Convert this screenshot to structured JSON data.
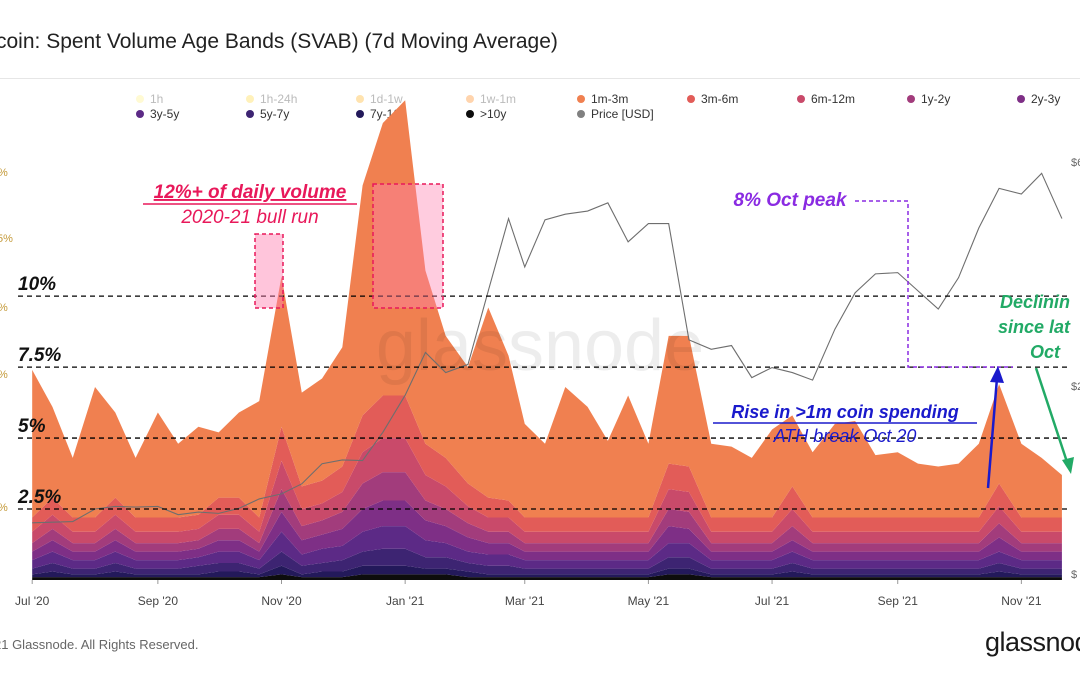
{
  "title": "coin: Spent Volume Age Bands (SVAB) (7d Moving Average)",
  "footer": "21 Glassnode. All Rights Reserved.",
  "logo": "glassnod",
  "watermark": "glassnode",
  "legend": [
    {
      "label": "1h",
      "color": "#fff59d",
      "faded": true
    },
    {
      "label": "1h-24h",
      "color": "#ffe066",
      "faded": true
    },
    {
      "label": "1d-1w",
      "color": "#ffc04d",
      "faded": true
    },
    {
      "label": "1w-1m",
      "color": "#ff9f4a",
      "faded": true
    },
    {
      "label": "1m-3m",
      "color": "#f08050",
      "faded": false
    },
    {
      "label": "3m-6m",
      "color": "#e25c58",
      "faded": false
    },
    {
      "label": "6m-12m",
      "color": "#c94a6a",
      "faded": false
    },
    {
      "label": "1y-2y",
      "color": "#a23c7c",
      "faded": false
    },
    {
      "label": "2y-3y",
      "color": "#7e2f86",
      "faded": false
    },
    {
      "label": "3y-5y",
      "color": "#5c2a86",
      "faded": false
    },
    {
      "label": "5y-7y",
      "color": "#3d2472",
      "faded": false
    },
    {
      "label": "7y-10y",
      "color": "#23195a",
      "faded": false
    },
    {
      "label": ">10y",
      "color": "#0d0d0d",
      "faded": false
    },
    {
      "label": "Price [USD]",
      "color": "#808080",
      "faded": false
    }
  ],
  "left_axis_fragments": [
    "%",
    "5%",
    "%",
    "%",
    "%"
  ],
  "right_axis_fragments": [
    "$6",
    "$2",
    "$"
  ],
  "annotations": {
    "bull_run_title": "12%+ of daily volume",
    "bull_run_sub": "2020-21 bull run",
    "oct_peak": "8% Oct peak",
    "rise_title": "Rise in >1m coin spending",
    "rise_sub": "ATH break Oct 20",
    "declining_1": "Declinin",
    "declining_2": "since lat",
    "declining_3": "Oct"
  },
  "colors": {
    "bull_run": "#e8185a",
    "oct_peak": "#8a2be2",
    "rise": "#1a1acc",
    "declining": "#22aa66",
    "price_line": "#6e6e6e"
  },
  "chart_data": {
    "type": "area",
    "title": "coin: Spent Volume Age Bands (SVAB) (7d Moving Average)",
    "stacked": true,
    "x_ticks": [
      "Jul '20",
      "Sep '20",
      "Nov '20",
      "Jan '21",
      "Mar '21",
      "May '21",
      "Jul '21",
      "Sep '21",
      "Nov '21"
    ],
    "y_reference_lines": [
      {
        "label": "10%",
        "value": 10
      },
      {
        "label": "7.5%",
        "value": 7.5
      },
      {
        "label": "5%",
        "value": 5
      },
      {
        "label": "2.5%",
        "value": 2.5
      }
    ],
    "ylim": [
      0,
      15.5
    ],
    "x": [
      "2020-07-01",
      "2020-07-11",
      "2020-07-21",
      "2020-08-01",
      "2020-08-11",
      "2020-08-21",
      "2020-09-01",
      "2020-09-11",
      "2020-09-21",
      "2020-10-01",
      "2020-10-11",
      "2020-10-21",
      "2020-11-01",
      "2020-11-11",
      "2020-11-21",
      "2020-12-01",
      "2020-12-11",
      "2020-12-21",
      "2021-01-01",
      "2021-01-11",
      "2021-01-21",
      "2021-02-01",
      "2021-02-11",
      "2021-02-21",
      "2021-03-01",
      "2021-03-11",
      "2021-03-21",
      "2021-04-01",
      "2021-04-11",
      "2021-04-21",
      "2021-05-01",
      "2021-05-11",
      "2021-05-21",
      "2021-06-01",
      "2021-06-11",
      "2021-06-21",
      "2021-07-01",
      "2021-07-11",
      "2021-07-21",
      "2021-08-01",
      "2021-08-11",
      "2021-08-21",
      "2021-09-01",
      "2021-09-11",
      "2021-09-21",
      "2021-10-01",
      "2021-10-11",
      "2021-10-21",
      "2021-11-01",
      "2021-11-11",
      "2021-11-21"
    ],
    "series": [
      {
        "name": ">10y",
        "values": [
          0.1,
          0.1,
          0.1,
          0.1,
          0.1,
          0.1,
          0.1,
          0.1,
          0.1,
          0.1,
          0.1,
          0.1,
          0.2,
          0.1,
          0.1,
          0.1,
          0.2,
          0.2,
          0.2,
          0.2,
          0.2,
          0.1,
          0.1,
          0.1,
          0.1,
          0.1,
          0.1,
          0.1,
          0.1,
          0.1,
          0.1,
          0.2,
          0.2,
          0.1,
          0.1,
          0.1,
          0.1,
          0.1,
          0.1,
          0.1,
          0.1,
          0.1,
          0.1,
          0.1,
          0.1,
          0.1,
          0.1,
          0.1,
          0.1,
          0.1,
          0.1
        ]
      },
      {
        "name": "7y-10y",
        "values": [
          0.1,
          0.2,
          0.1,
          0.1,
          0.2,
          0.1,
          0.1,
          0.1,
          0.1,
          0.2,
          0.2,
          0.1,
          0.3,
          0.1,
          0.2,
          0.2,
          0.3,
          0.3,
          0.3,
          0.2,
          0.2,
          0.2,
          0.1,
          0.1,
          0.1,
          0.1,
          0.1,
          0.1,
          0.1,
          0.1,
          0.1,
          0.2,
          0.2,
          0.1,
          0.1,
          0.1,
          0.1,
          0.2,
          0.1,
          0.1,
          0.1,
          0.1,
          0.1,
          0.1,
          0.1,
          0.1,
          0.1,
          0.2,
          0.1,
          0.1,
          0.1
        ]
      },
      {
        "name": "5y-7y",
        "values": [
          0.2,
          0.3,
          0.2,
          0.2,
          0.3,
          0.2,
          0.2,
          0.2,
          0.3,
          0.3,
          0.3,
          0.2,
          0.5,
          0.3,
          0.3,
          0.4,
          0.5,
          0.6,
          0.6,
          0.4,
          0.4,
          0.3,
          0.3,
          0.3,
          0.2,
          0.2,
          0.2,
          0.2,
          0.2,
          0.2,
          0.2,
          0.4,
          0.4,
          0.2,
          0.2,
          0.2,
          0.2,
          0.3,
          0.2,
          0.2,
          0.2,
          0.2,
          0.2,
          0.2,
          0.2,
          0.2,
          0.2,
          0.3,
          0.2,
          0.2,
          0.2
        ]
      },
      {
        "name": "3y-5y",
        "values": [
          0.3,
          0.4,
          0.3,
          0.3,
          0.4,
          0.3,
          0.3,
          0.3,
          0.3,
          0.4,
          0.4,
          0.3,
          0.7,
          0.4,
          0.5,
          0.5,
          0.7,
          0.8,
          0.8,
          0.6,
          0.5,
          0.4,
          0.4,
          0.4,
          0.3,
          0.3,
          0.3,
          0.3,
          0.3,
          0.3,
          0.3,
          0.5,
          0.5,
          0.3,
          0.3,
          0.3,
          0.3,
          0.4,
          0.3,
          0.3,
          0.3,
          0.3,
          0.3,
          0.3,
          0.3,
          0.3,
          0.3,
          0.4,
          0.3,
          0.3,
          0.3
        ]
      },
      {
        "name": "2y-3y",
        "values": [
          0.3,
          0.4,
          0.3,
          0.3,
          0.4,
          0.3,
          0.3,
          0.3,
          0.3,
          0.4,
          0.4,
          0.3,
          0.7,
          0.5,
          0.5,
          0.6,
          0.8,
          0.9,
          0.9,
          0.7,
          0.6,
          0.5,
          0.4,
          0.4,
          0.3,
          0.3,
          0.3,
          0.3,
          0.3,
          0.3,
          0.3,
          0.6,
          0.5,
          0.3,
          0.3,
          0.3,
          0.3,
          0.4,
          0.3,
          0.3,
          0.3,
          0.3,
          0.3,
          0.3,
          0.3,
          0.3,
          0.3,
          0.5,
          0.3,
          0.3,
          0.3
        ]
      },
      {
        "name": "1y-2y",
        "values": [
          0.3,
          0.4,
          0.3,
          0.3,
          0.4,
          0.3,
          0.3,
          0.3,
          0.3,
          0.4,
          0.4,
          0.3,
          0.8,
          0.5,
          0.5,
          0.6,
          0.9,
          1.0,
          1.0,
          0.7,
          0.6,
          0.5,
          0.4,
          0.4,
          0.3,
          0.3,
          0.3,
          0.3,
          0.3,
          0.3,
          0.3,
          0.6,
          0.6,
          0.3,
          0.3,
          0.3,
          0.3,
          0.5,
          0.3,
          0.3,
          0.3,
          0.3,
          0.3,
          0.3,
          0.3,
          0.3,
          0.3,
          0.5,
          0.3,
          0.3,
          0.3
        ]
      },
      {
        "name": "6m-12m",
        "values": [
          0.4,
          0.5,
          0.4,
          0.4,
          0.5,
          0.4,
          0.4,
          0.4,
          0.4,
          0.5,
          0.5,
          0.4,
          1.0,
          0.6,
          0.6,
          0.7,
          1.1,
          1.2,
          1.2,
          0.9,
          0.8,
          0.6,
          0.5,
          0.5,
          0.4,
          0.4,
          0.4,
          0.4,
          0.4,
          0.4,
          0.4,
          0.7,
          0.7,
          0.4,
          0.4,
          0.4,
          0.4,
          0.6,
          0.4,
          0.4,
          0.4,
          0.4,
          0.4,
          0.4,
          0.4,
          0.4,
          0.4,
          0.6,
          0.4,
          0.4,
          0.4
        ]
      },
      {
        "name": "3m-6m",
        "values": [
          0.5,
          0.6,
          0.5,
          0.5,
          0.6,
          0.5,
          0.5,
          0.5,
          0.5,
          0.6,
          0.6,
          0.5,
          1.2,
          0.8,
          0.8,
          0.9,
          1.3,
          1.5,
          1.5,
          1.1,
          1.0,
          0.8,
          0.7,
          0.6,
          0.5,
          0.5,
          0.5,
          0.5,
          0.5,
          0.5,
          0.5,
          0.9,
          0.9,
          0.5,
          0.5,
          0.5,
          0.5,
          0.8,
          0.5,
          0.5,
          0.5,
          0.5,
          0.5,
          0.5,
          0.5,
          0.5,
          0.5,
          0.8,
          0.5,
          0.5,
          0.5
        ]
      },
      {
        "name": "1m-3m",
        "values": [
          5.2,
          3.2,
          2.1,
          4.6,
          3.0,
          2.1,
          3.7,
          2.6,
          3.1,
          2.3,
          3.0,
          4.1,
          5.3,
          3.3,
          3.6,
          4.2,
          8.1,
          9.6,
          10.4,
          6.1,
          4.3,
          4.1,
          6.7,
          5.1,
          3.3,
          2.6,
          4.6,
          3.9,
          2.7,
          4.3,
          2.6,
          4.5,
          4.6,
          2.6,
          2.5,
          2.1,
          3.1,
          2.5,
          2.3,
          3.3,
          3.4,
          2.2,
          2.3,
          1.9,
          1.8,
          1.9,
          2.6,
          3.5,
          2.6,
          2.1,
          1.5
        ]
      }
    ],
    "price": {
      "name": "Price [USD]",
      "unit": "USD",
      "ylim": [
        0,
        70000
      ],
      "values": [
        9100,
        9200,
        9300,
        11300,
        11700,
        11600,
        11700,
        10400,
        10800,
        10600,
        11400,
        12900,
        13700,
        15300,
        18500,
        19100,
        19000,
        23500,
        29400,
        36200,
        33000,
        34300,
        46000,
        57500,
        49800,
        57300,
        58200,
        58700,
        60000,
        53800,
        56700,
        56700,
        38200,
        36700,
        37300,
        32200,
        33800,
        33000,
        31800,
        39900,
        45700,
        48700,
        48900,
        46000,
        43100,
        48100,
        56000,
        62300,
        61400,
        64700,
        57500
      ]
    }
  }
}
